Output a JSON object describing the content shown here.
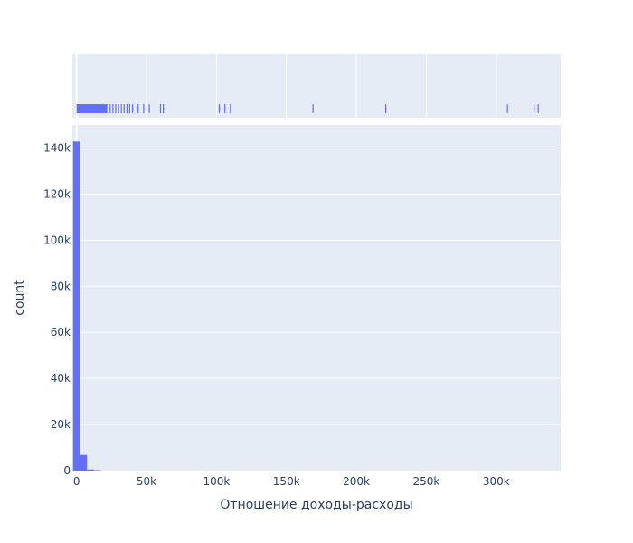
{
  "chart_data": {
    "type": "bar",
    "xlabel": "Отношение доходы-расходы",
    "ylabel": "count",
    "xlim": [
      -3000,
      346000
    ],
    "ylim": [
      0,
      150000
    ],
    "xticks": [
      0,
      50000,
      100000,
      150000,
      200000,
      250000,
      300000
    ],
    "xtick_labels": [
      "0",
      "50k",
      "100k",
      "150k",
      "200k",
      "250k",
      "300k"
    ],
    "yticks": [
      0,
      20000,
      40000,
      60000,
      80000,
      100000,
      120000,
      140000
    ],
    "ytick_labels": [
      "0",
      "20k",
      "40k",
      "60k",
      "80k",
      "100k",
      "120k",
      "140k"
    ],
    "bin_width": 5000,
    "bins": [
      {
        "x0": -2500,
        "x1": 2500,
        "count": 142800
      },
      {
        "x0": 2500,
        "x1": 7500,
        "count": 6800
      },
      {
        "x0": 7500,
        "x1": 12500,
        "count": 500
      },
      {
        "x0": 12500,
        "x1": 17500,
        "count": 200
      }
    ],
    "rug_dense_range": [
      0,
      22000
    ],
    "rug_values": [
      24000,
      26000,
      28000,
      30000,
      32000,
      34000,
      36000,
      38000,
      40000,
      44000,
      48000,
      52000,
      60000,
      62000,
      102000,
      106000,
      110000,
      169000,
      221000,
      308000,
      327000,
      330000
    ],
    "grid": true,
    "marker_color": "#636efa",
    "plot_bg": "#e5ecf6"
  }
}
